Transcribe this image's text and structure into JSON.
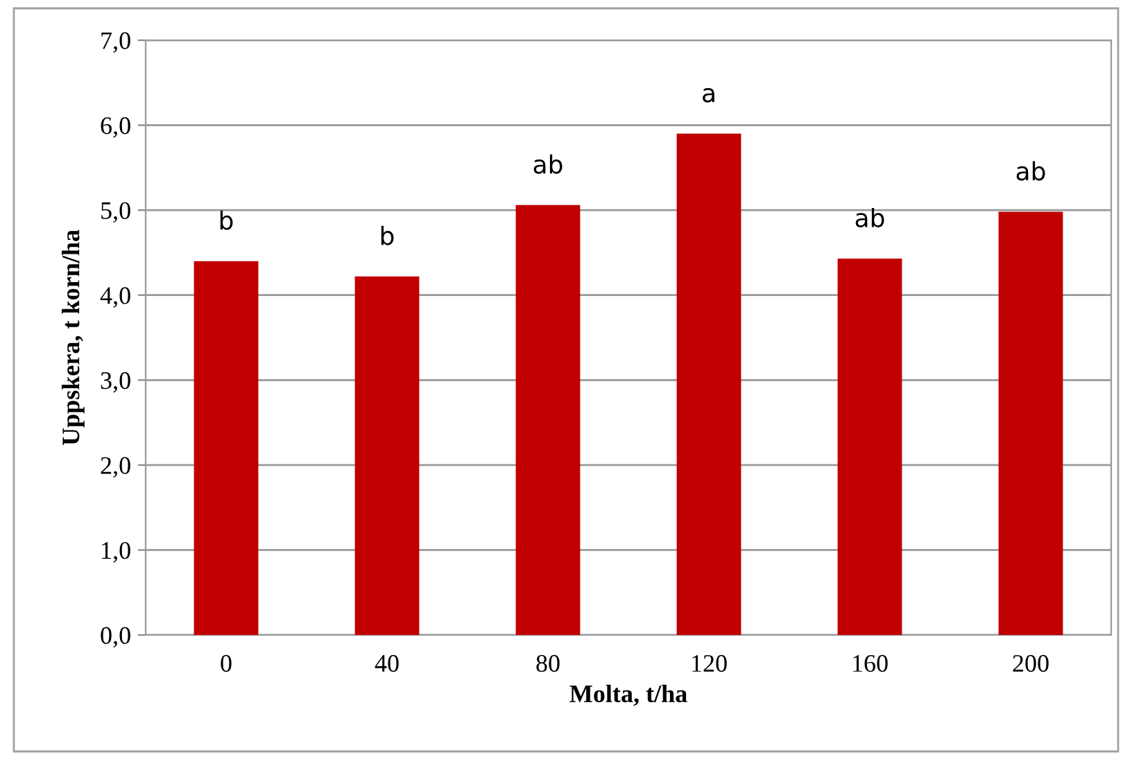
{
  "chart_data": {
    "type": "bar",
    "xlabel": "Molta, t/ha",
    "ylabel": "Uppskera, t korn/ha",
    "categories": [
      "0",
      "40",
      "80",
      "120",
      "160",
      "200"
    ],
    "values": [
      4.4,
      4.22,
      5.06,
      5.9,
      4.43,
      4.98
    ],
    "color": "#c00000",
    "ylim": [
      0,
      7
    ],
    "yticks": [
      {
        "value": 0,
        "label": "0,0"
      },
      {
        "value": 1,
        "label": "1,0"
      },
      {
        "value": 2,
        "label": "2,0"
      },
      {
        "value": 3,
        "label": "3,0"
      },
      {
        "value": 4,
        "label": "4,0"
      },
      {
        "value": 5,
        "label": "5,0"
      },
      {
        "value": 6,
        "label": "6,0"
      },
      {
        "value": 7,
        "label": "7,0"
      }
    ],
    "grid": "y",
    "annotations": [
      "b",
      "b",
      "ab",
      "a",
      "ab",
      "ab"
    ]
  }
}
